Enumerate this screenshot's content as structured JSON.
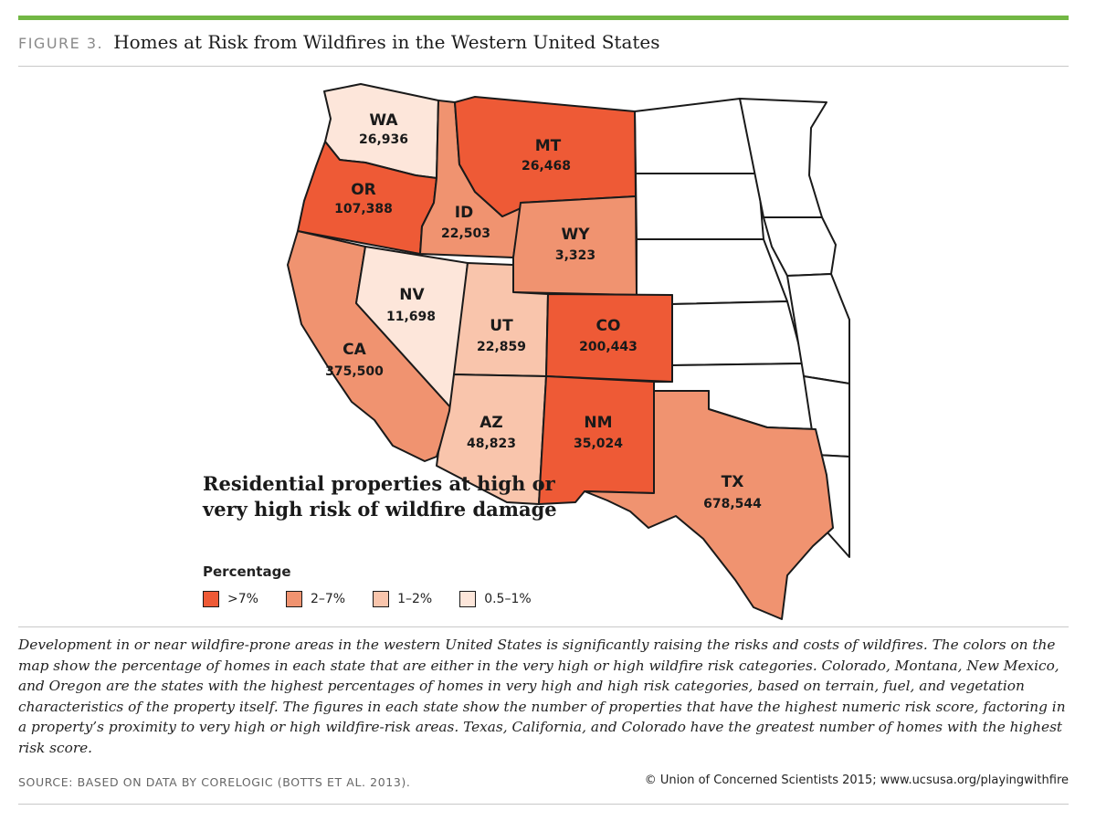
{
  "header": {
    "figure_label": "FIGURE 3.",
    "title": "Homes at Risk from Wildfires in the Western United States"
  },
  "map": {
    "fill_colors": {
      "gt7": "#ee5a36",
      "2to7": "#f09370",
      "1to2": "#f9c5ac",
      "0.5to1": "#fde6da",
      "other": "#ffffff"
    },
    "states": [
      {
        "id": "wa",
        "abbr": "WA",
        "value": "26,936",
        "category": "0.5to1"
      },
      {
        "id": "or",
        "abbr": "OR",
        "value": "107,388",
        "category": "gt7"
      },
      {
        "id": "ca",
        "abbr": "CA",
        "value": "375,500",
        "category": "2to7"
      },
      {
        "id": "id",
        "abbr": "ID",
        "value": "22,503",
        "category": "2to7"
      },
      {
        "id": "nv",
        "abbr": "NV",
        "value": "11,698",
        "category": "0.5to1"
      },
      {
        "id": "mt",
        "abbr": "MT",
        "value": "26,468",
        "category": "gt7"
      },
      {
        "id": "wy",
        "abbr": "WY",
        "value": "3,323",
        "category": "2to7"
      },
      {
        "id": "ut",
        "abbr": "UT",
        "value": "22,859",
        "category": "1to2"
      },
      {
        "id": "co",
        "abbr": "CO",
        "value": "200,443",
        "category": "gt7"
      },
      {
        "id": "az",
        "abbr": "AZ",
        "value": "48,823",
        "category": "1to2"
      },
      {
        "id": "nm",
        "abbr": "NM",
        "value": "35,024",
        "category": "gt7"
      },
      {
        "id": "tx",
        "abbr": "TX",
        "value": "678,544",
        "category": "2to7"
      }
    ]
  },
  "legend": {
    "title": "Residential properties at high or very high risk of wildfire damage",
    "subtitle": "Percentage",
    "items": [
      {
        "label": ">7%",
        "color": "#ee5a36"
      },
      {
        "label": "2–7%",
        "color": "#f09370"
      },
      {
        "label": "1–2%",
        "color": "#f9c5ac"
      },
      {
        "label": "0.5–1%",
        "color": "#fde6da"
      }
    ]
  },
  "caption": "Development in or near wildfire-prone areas in the western United States is significantly raising the risks and costs of wildfires. The colors on the map show the percentage of homes in each state that are either in the very high or high wildfire risk categories. Colorado, Montana, New Mexico, and Oregon are the states with the highest percentages of homes in very high and high risk categories, based on terrain, fuel, and vegetation characteristics of the property itself. The figures in each state show the number of properties that have the highest numeric risk score, factoring in a property’s proximity to very high or high wildfire-risk areas. Texas, California, and Colorado have the greatest number of homes with the highest risk score.",
  "footer": {
    "source": "SOURCE: BASED ON DATA BY CORELOGIC (BOTTS ET AL. 2013).",
    "credit": "© Union of Concerned Scientists 2015; www.ucsusa.org/playingwithfire"
  }
}
